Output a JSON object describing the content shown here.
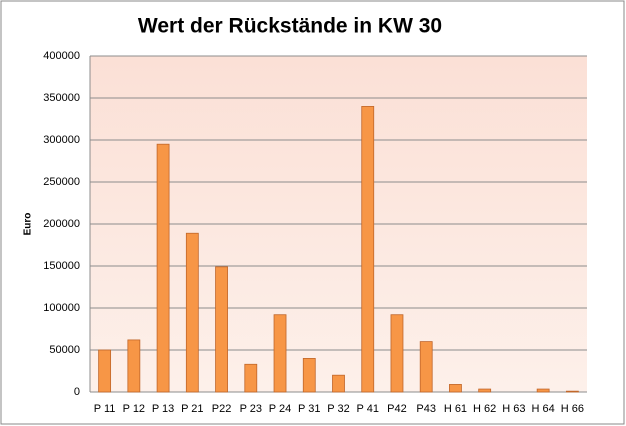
{
  "chart_data": {
    "type": "bar",
    "title": "Wert der Rückstände in KW 30",
    "y_label": "Euro",
    "categories": [
      "P 11",
      "P 12",
      "P 13",
      "P 21",
      "P22",
      "P 23",
      "P 24",
      "P 31",
      "P 32",
      "P 41",
      "P42",
      "P43",
      "H 61",
      "H 62",
      "H 63",
      "H 64",
      "H 66"
    ],
    "values": [
      50000,
      62000,
      295000,
      189000,
      149000,
      33000,
      92000,
      40000,
      20000,
      340000,
      92000,
      60000,
      9000,
      3500,
      0,
      3500,
      1000
    ],
    "color": "#f79646",
    "ylim": [
      0,
      400000
    ],
    "yticks": [
      0,
      50000,
      100000,
      150000,
      200000,
      250000,
      300000,
      350000,
      400000
    ],
    "grid": true
  }
}
